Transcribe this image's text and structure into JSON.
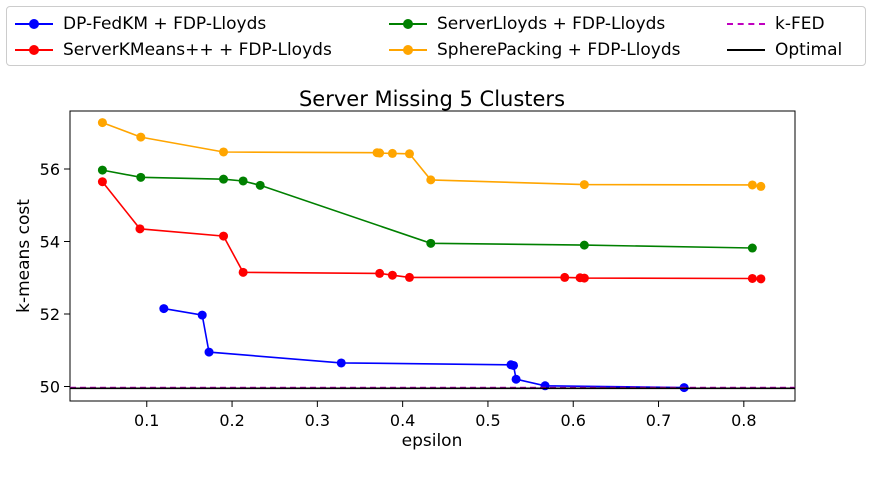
{
  "legend": {
    "items": [
      {
        "label": "DP-FedKM + FDP-Lloyds",
        "color": "#0000ff",
        "style": "marker-line"
      },
      {
        "label": "ServerKMeans++ + FDP-Lloyds",
        "color": "#ff0000",
        "style": "marker-line"
      },
      {
        "label": "ServerLloyds + FDP-Lloyds",
        "color": "#008000",
        "style": "marker-line"
      },
      {
        "label": "SpherePacking + FDP-Lloyds",
        "color": "#ffa500",
        "style": "marker-line"
      },
      {
        "label": "k-FED",
        "color": "#bf00bf",
        "style": "dashed"
      },
      {
        "label": "Optimal",
        "color": "#000000",
        "style": "solid"
      }
    ]
  },
  "chart_data": {
    "type": "line",
    "title": "Server Missing 5 Clusters",
    "xlabel": "epsilon",
    "ylabel": "k-means cost",
    "xlim": [
      0.01,
      0.86
    ],
    "ylim": [
      49.6,
      57.6
    ],
    "xticks": [
      0.1,
      0.2,
      0.3,
      0.4,
      0.5,
      0.6,
      0.7,
      0.8
    ],
    "xtick_labels": [
      "0.1",
      "0.2",
      "0.3",
      "0.4",
      "0.5",
      "0.6",
      "0.7",
      "0.8"
    ],
    "yticks": [
      50,
      52,
      54,
      56
    ],
    "ytick_labels": [
      "50",
      "52",
      "54",
      "56"
    ],
    "grid": false,
    "series": [
      {
        "name": "DP-FedKM + FDP-Lloyds",
        "color": "#0000ff",
        "markers": true,
        "x": [
          0.12,
          0.165,
          0.173,
          0.328,
          0.527,
          0.53,
          0.533,
          0.567,
          0.73
        ],
        "y": [
          52.15,
          51.97,
          50.95,
          50.65,
          50.6,
          50.58,
          50.2,
          50.02,
          49.97
        ]
      },
      {
        "name": "ServerKMeans++ + FDP-Lloyds",
        "color": "#ff0000",
        "markers": true,
        "x": [
          0.048,
          0.092,
          0.19,
          0.213,
          0.373,
          0.388,
          0.408,
          0.59,
          0.608,
          0.613,
          0.81,
          0.82
        ],
        "y": [
          55.65,
          54.35,
          54.15,
          53.15,
          53.12,
          53.07,
          53.01,
          53.01,
          53.0,
          52.99,
          52.98,
          52.97
        ]
      },
      {
        "name": "ServerLloyds + FDP-Lloyds",
        "color": "#008000",
        "markers": true,
        "x": [
          0.048,
          0.093,
          0.19,
          0.213,
          0.233,
          0.433,
          0.613,
          0.81
        ],
        "y": [
          55.97,
          55.77,
          55.72,
          55.67,
          55.55,
          53.95,
          53.9,
          53.82
        ]
      },
      {
        "name": "SpherePacking + FDP-Lloyds",
        "color": "#ffa500",
        "markers": true,
        "x": [
          0.048,
          0.093,
          0.19,
          0.37,
          0.373,
          0.388,
          0.408,
          0.433,
          0.613,
          0.81,
          0.82
        ],
        "y": [
          57.28,
          56.88,
          56.47,
          56.45,
          56.44,
          56.43,
          56.42,
          55.7,
          55.57,
          55.56,
          55.52
        ]
      },
      {
        "name": "k-FED",
        "color": "#bf00bf",
        "markers": false,
        "dashed": true,
        "x": [
          0.01,
          0.86
        ],
        "y": [
          49.97,
          49.97
        ]
      },
      {
        "name": "Optimal",
        "color": "#000000",
        "markers": false,
        "x": [
          0.01,
          0.86
        ],
        "y": [
          49.95,
          49.95
        ]
      }
    ]
  }
}
